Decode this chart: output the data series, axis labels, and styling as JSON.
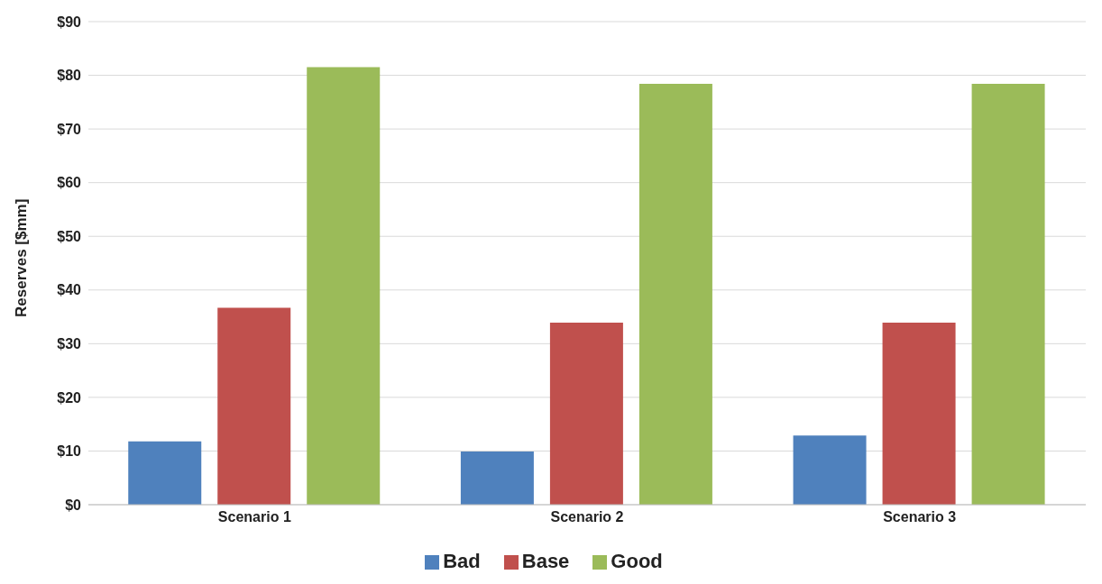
{
  "chart_data": {
    "type": "bar",
    "ylabel": "Reserves [$mm]",
    "categories": [
      "Scenario 1",
      "Scenario 2",
      "Scenario 3"
    ],
    "series": [
      {
        "name": "Bad",
        "color": "#4f81bd",
        "values": [
          11.8,
          9.9,
          12.9
        ]
      },
      {
        "name": "Base",
        "color": "#c0504d",
        "values": [
          36.7,
          33.9,
          33.9
        ]
      },
      {
        "name": "Good",
        "color": "#9bbb59",
        "values": [
          81.5,
          78.4,
          78.4
        ]
      }
    ],
    "ylim": [
      0,
      90
    ],
    "yticks": [
      {
        "value": 0,
        "label": "$0"
      },
      {
        "value": 10,
        "label": "$10"
      },
      {
        "value": 20,
        "label": "$20"
      },
      {
        "value": 30,
        "label": "$30"
      },
      {
        "value": 40,
        "label": "$40"
      },
      {
        "value": 50,
        "label": "$50"
      },
      {
        "value": 60,
        "label": "$60"
      },
      {
        "value": 70,
        "label": "$70"
      },
      {
        "value": 80,
        "label": "$80"
      },
      {
        "value": 90,
        "label": "$90"
      }
    ],
    "grid": "y",
    "legend": "bottom"
  }
}
